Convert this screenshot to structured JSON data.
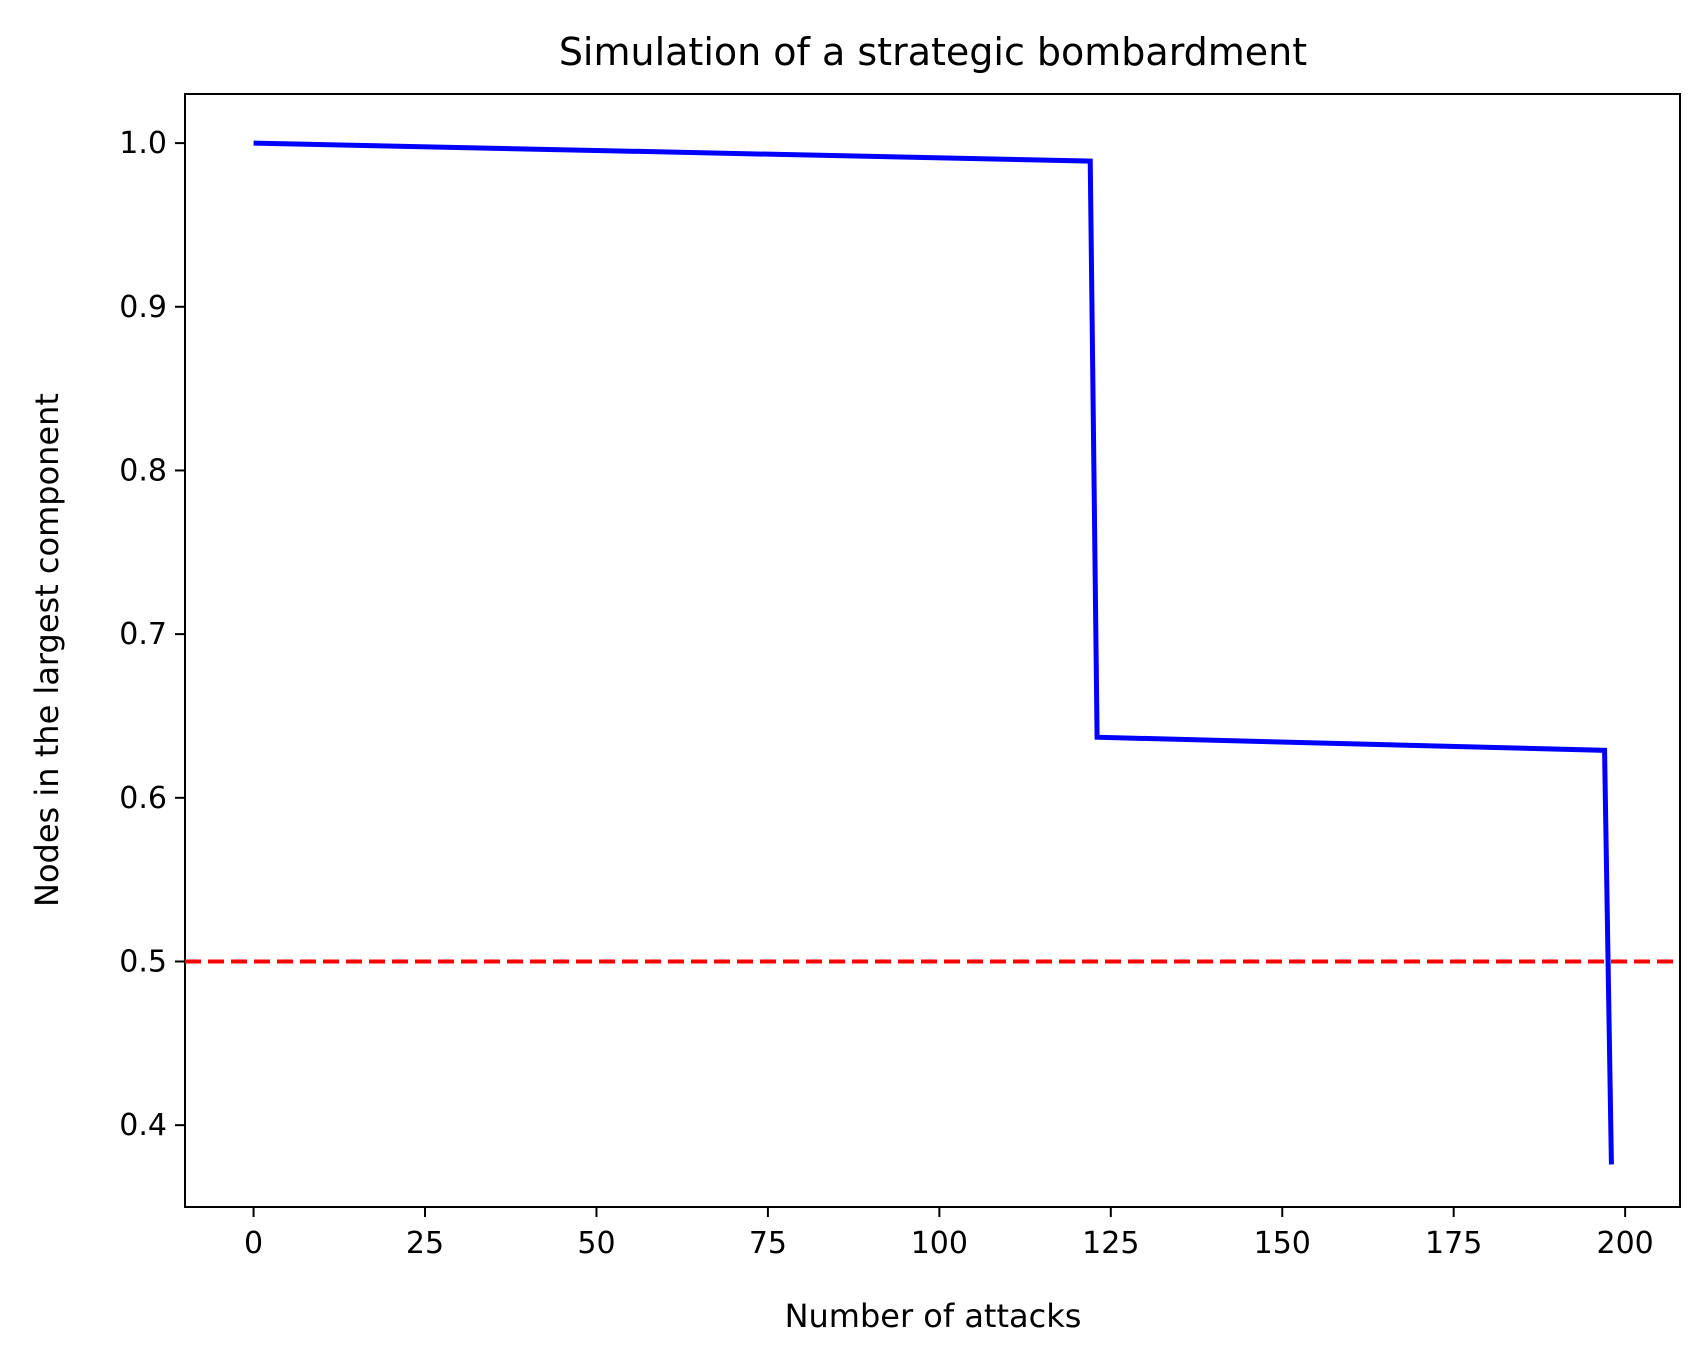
{
  "chart_data": {
    "type": "line",
    "title": "Simulation of a strategic bombardment",
    "xlabel": "Number of attacks",
    "ylabel": "Nodes in the largest component",
    "xlim": [
      -10,
      208
    ],
    "ylim": [
      0.35,
      1.03
    ],
    "xticks": [
      0,
      25,
      50,
      75,
      100,
      125,
      150,
      175,
      200
    ],
    "yticks": [
      0.4,
      0.5,
      0.6,
      0.7,
      0.8,
      0.9,
      1.0
    ],
    "xtick_labels": [
      "0",
      "25",
      "50",
      "75",
      "100",
      "125",
      "150",
      "175",
      "200"
    ],
    "ytick_labels": [
      "0.4",
      "0.5",
      "0.6",
      "0.7",
      "0.8",
      "0.9",
      "1.0"
    ],
    "grid": false,
    "series": [
      {
        "color": "#0000ff",
        "style": "solid",
        "points": [
          [
            0,
            1.0
          ],
          [
            122,
            0.989
          ],
          [
            123,
            0.637
          ],
          [
            197,
            0.629
          ],
          [
            198,
            0.376
          ]
        ]
      }
    ],
    "reference_lines": [
      {
        "orientation": "horizontal",
        "y": 0.5,
        "color": "#ff0000",
        "style": "dashed"
      }
    ]
  }
}
